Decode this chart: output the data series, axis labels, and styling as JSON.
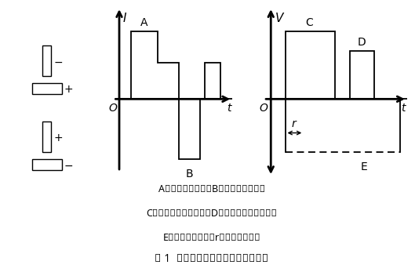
{
  "title_line1": "A：直流正接脉冲；B：直流反接脉冲；",
  "title_line2": "C：直流正接控制脉冲；D：直流反接控制脉冲；",
  "title_line3": "E：光谱触发信号；r：触发延迟时间",
  "caption": "图 1  脉冲变极性弧焼电流及控制波形",
  "bg_color": "#ffffff",
  "line_color": "#000000",
  "fontsize_label": 9,
  "fontsize_caption": 9,
  "fontsize_title": 10
}
